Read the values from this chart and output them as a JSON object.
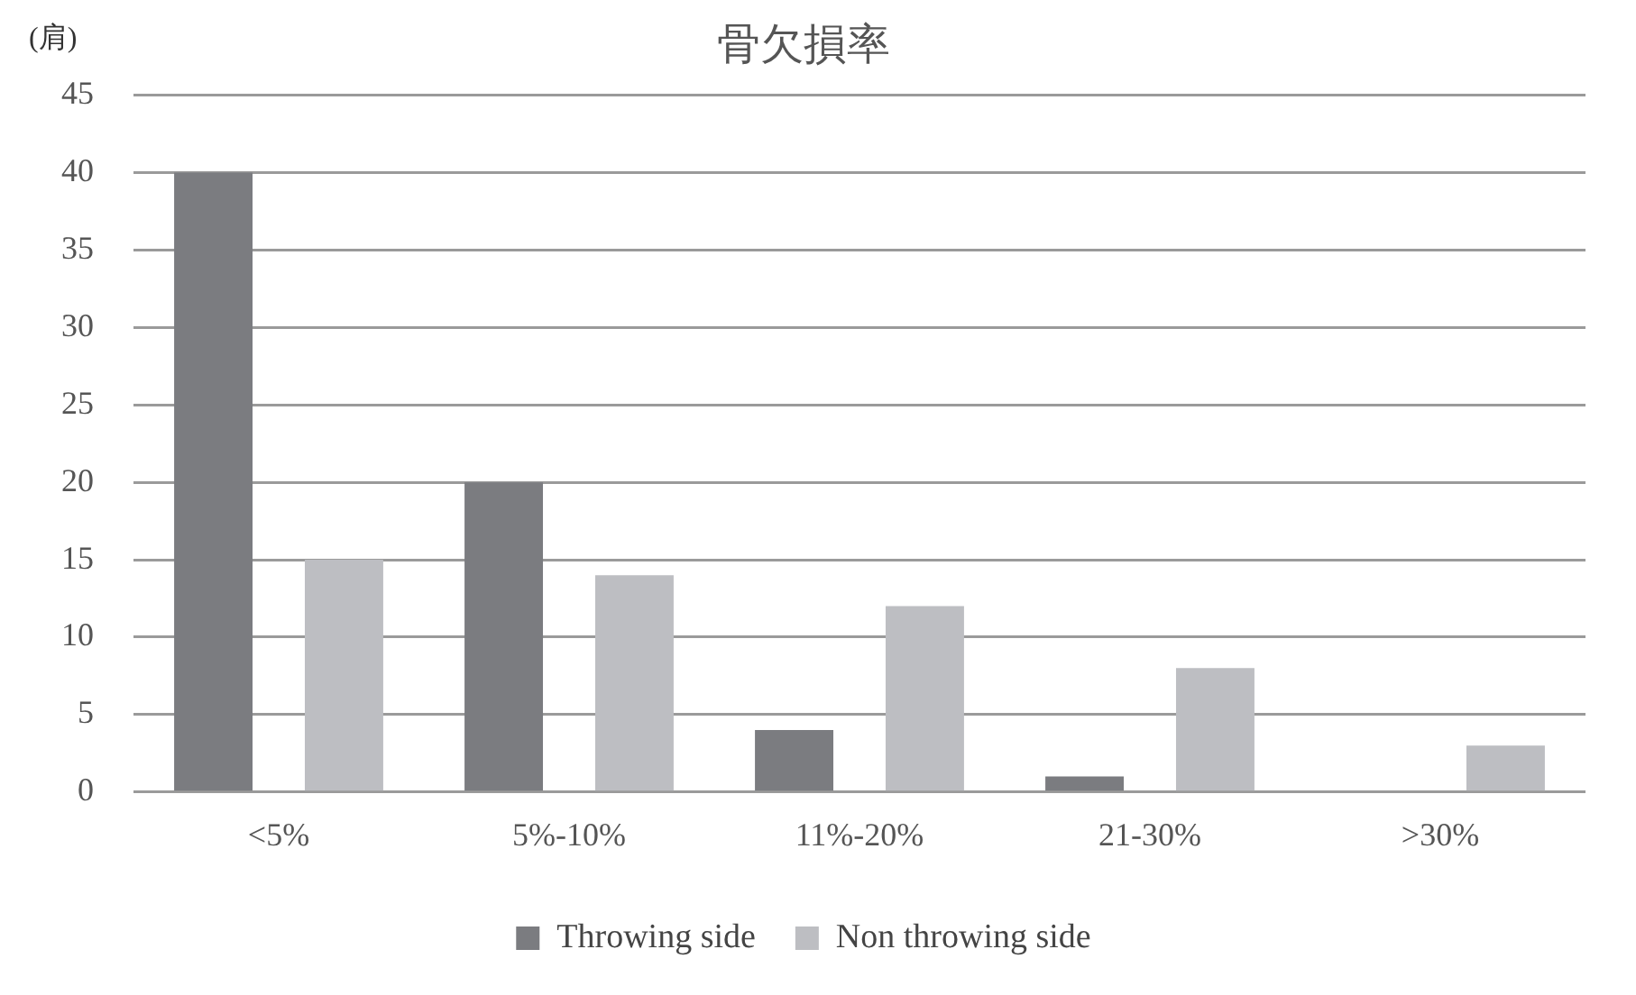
{
  "chart_data": {
    "type": "bar",
    "title": "骨欠損率",
    "ylabel": "(肩)",
    "categories": [
      "<5%",
      "5%-10%",
      "11%-20%",
      "21-30%",
      ">30%"
    ],
    "series": [
      {
        "name": "Throwing side",
        "color": "#7b7c80",
        "values": [
          40,
          20,
          4,
          1,
          0
        ]
      },
      {
        "name": "Non throwing side",
        "color": "#bdbec2",
        "values": [
          15,
          14,
          12,
          8,
          3
        ]
      }
    ],
    "ylim": [
      0,
      45
    ],
    "yticks": [
      0,
      5,
      10,
      15,
      20,
      25,
      30,
      35,
      40,
      45
    ],
    "grid": "y",
    "legend": "bottom"
  }
}
